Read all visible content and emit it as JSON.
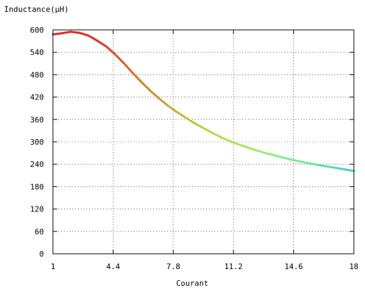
{
  "chart_data": {
    "type": "line",
    "title": "",
    "xlabel": "Courant",
    "ylabel": "Inductance(µH)",
    "xlim": [
      1,
      18
    ],
    "ylim": [
      0,
      600
    ],
    "x_ticks": [
      "1",
      "4.4",
      "7.8",
      "11.2",
      "14.6",
      "18"
    ],
    "y_ticks": [
      "0",
      "60",
      "120",
      "180",
      "240",
      "300",
      "360",
      "420",
      "480",
      "540",
      "600"
    ],
    "grid": true,
    "legend": "none",
    "color_gradient": {
      "stops": [
        "#e82020",
        "#e03020",
        "#d87a22",
        "#c4b830",
        "#b8e048",
        "#90f078",
        "#70e8a0",
        "#40d0c8"
      ]
    },
    "series": [
      {
        "x": [
          1.0,
          1.5,
          2.0,
          2.5,
          3.0,
          3.5,
          4.0,
          4.5,
          5.0,
          5.5,
          6.0,
          6.5,
          7.0,
          7.5,
          8.0,
          8.5,
          9.0,
          9.5,
          10.0,
          10.5,
          11.0,
          11.5,
          12.0,
          12.5,
          13.0,
          13.5,
          14.0,
          14.5,
          15.0,
          15.5,
          16.0,
          16.5,
          17.0,
          17.5,
          18.0
        ],
        "values": [
          588,
          591,
          595,
          592,
          585,
          571,
          556,
          535,
          511,
          485,
          460,
          437,
          416,
          397,
          380,
          365,
          350,
          337,
          324,
          312,
          302,
          293,
          285,
          277,
          270,
          264,
          258,
          252,
          247,
          242,
          238,
          234,
          230,
          226,
          222
        ]
      }
    ]
  }
}
